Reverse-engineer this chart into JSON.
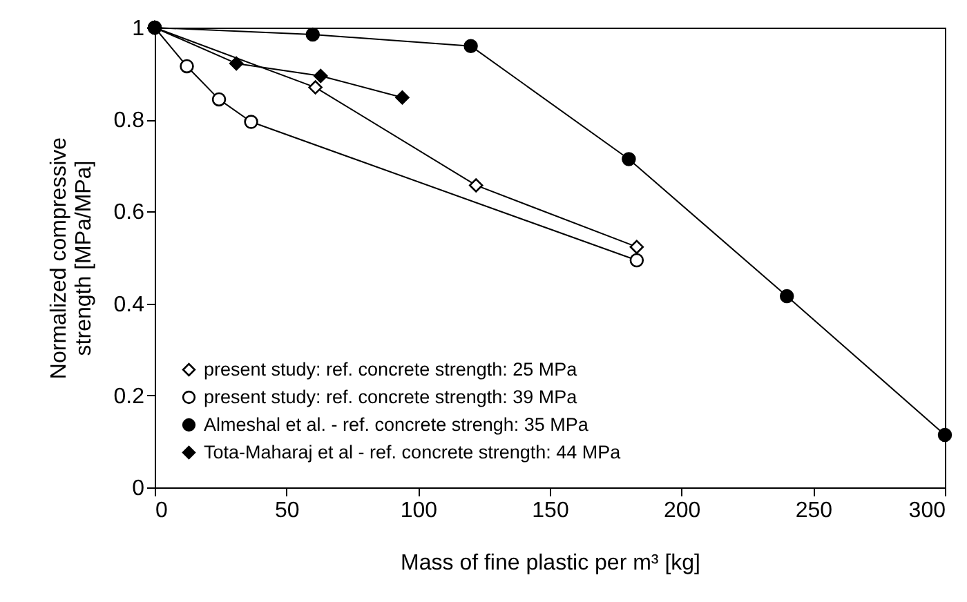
{
  "chart_data": {
    "type": "line",
    "xlabel": "Mass of fine plastic  per m³ [kg]",
    "ylabel": "Normalized  compressive\nstrength  [MPa/MPa]",
    "xlim": [
      0,
      300
    ],
    "xticks": [
      0,
      50,
      100,
      150,
      200,
      250,
      300
    ],
    "ylim": [
      0,
      1
    ],
    "yticks": [
      0,
      0.2,
      0.4,
      0.6,
      0.8,
      1
    ],
    "grid": false,
    "legend": "bottom left",
    "line_style": "solid",
    "series": [
      {
        "name": "present study: ref. concrete strength: 25 MPa",
        "color": "#ffffff",
        "marker": "diamond",
        "x": [
          0,
          61,
          122,
          183
        ],
        "values": [
          1,
          0.87,
          0.657,
          0.523
        ]
      },
      {
        "name": "present study: ref. concrete strength: 39 MPa",
        "color": "#ffffff",
        "marker": "circle",
        "x": [
          0,
          12.2,
          24.4,
          36.6,
          183
        ],
        "values": [
          1,
          0.916,
          0.844,
          0.795,
          0.494
        ]
      },
      {
        "name": "Almeshal et al. - ref. concrete strengh: 35 MPa",
        "color": "#000000",
        "marker": "circle",
        "x": [
          0,
          60,
          120,
          180,
          240,
          300
        ],
        "values": [
          1,
          0.985,
          0.96,
          0.714,
          0.416,
          0.114
        ]
      },
      {
        "name": "Tota-Maharaj et al - ref. concrete strength: 44 MPa",
        "color": "#000000",
        "marker": "diamond",
        "x": [
          0,
          31,
          63,
          94
        ],
        "values": [
          1,
          0.922,
          0.895,
          0.848
        ]
      }
    ]
  }
}
